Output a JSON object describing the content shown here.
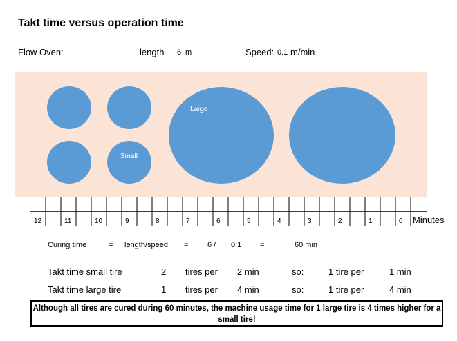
{
  "title": "Takt time versus operation time",
  "oven": {
    "label": "Flow Oven:",
    "length_label": "length",
    "length_value": "6",
    "length_unit": "m",
    "speed_label": "Speed:",
    "speed_value": "0.1",
    "speed_unit": "m/min"
  },
  "oven_diagram": {
    "background_color": "#fbe3d6",
    "tire_color": "#5b9bd5",
    "small_tire_label": "Small",
    "large_tire_label": "Large"
  },
  "axis": {
    "labels": [
      "12",
      "11",
      "10",
      "9",
      "8",
      "7",
      "6",
      "5",
      "4",
      "3",
      "2",
      "1",
      "0"
    ],
    "unit": "Minutes"
  },
  "curing": {
    "label": "Curing time",
    "eq1": "=",
    "formula": "length/speed",
    "eq2": "=",
    "num": "6 /",
    "den": "0.1",
    "eq3": "=",
    "result": "60 min"
  },
  "takt_small": {
    "label": "Takt time small tire",
    "count": "2",
    "tires_per": "tires per",
    "time": "2 min",
    "so": "so:",
    "one_tire_per": "1 tire per",
    "result": "1 min"
  },
  "takt_large": {
    "label": "Takt time large tire",
    "count": "1",
    "tires_per": "tires per",
    "time": "4 min",
    "so": "so:",
    "one_tire_per": "1 tire per",
    "result": "4 min"
  },
  "note": "Although all tires are cured during 60 minutes, the machine usage time for 1 large tire is 4 times higher for a small tire!"
}
